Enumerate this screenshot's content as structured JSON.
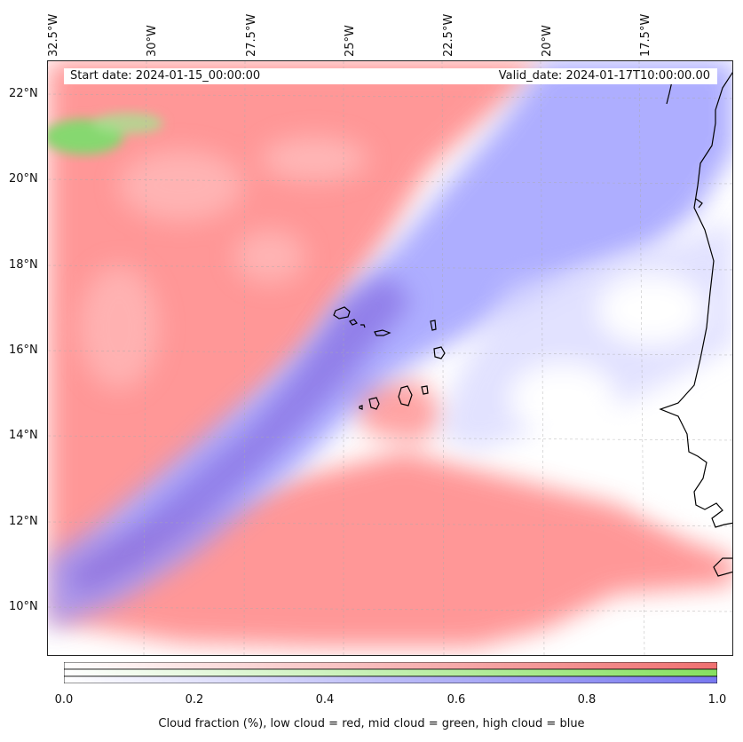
{
  "header": {
    "start_date": "Start date: 2024-01-15_00:00:00",
    "valid_date": "Valid_date: 2024-01-17T10:00:00.00"
  },
  "map": {
    "longitude_labels": [
      "32.5°W",
      "30°W",
      "27.5°W",
      "25°W",
      "22.5°W",
      "20°W",
      "17.5°W"
    ],
    "latitude_labels": [
      "22°N",
      "20°N",
      "18°N",
      "16°N",
      "14°N",
      "12°N",
      "10°N"
    ],
    "layer_colors": {
      "low": "#ff7f7f",
      "mid": "#7fe07f",
      "high": "#7f7fff"
    }
  },
  "colorbar": {
    "ticks": [
      "0.0",
      "0.2",
      "0.4",
      "0.6",
      "0.8",
      "1.0"
    ],
    "caption": "Cloud fraction (%), low cloud = red, mid cloud = green, high cloud = blue",
    "colors": {
      "low": "#f07070",
      "mid": "#86e060",
      "high": "#7878f0"
    }
  }
}
